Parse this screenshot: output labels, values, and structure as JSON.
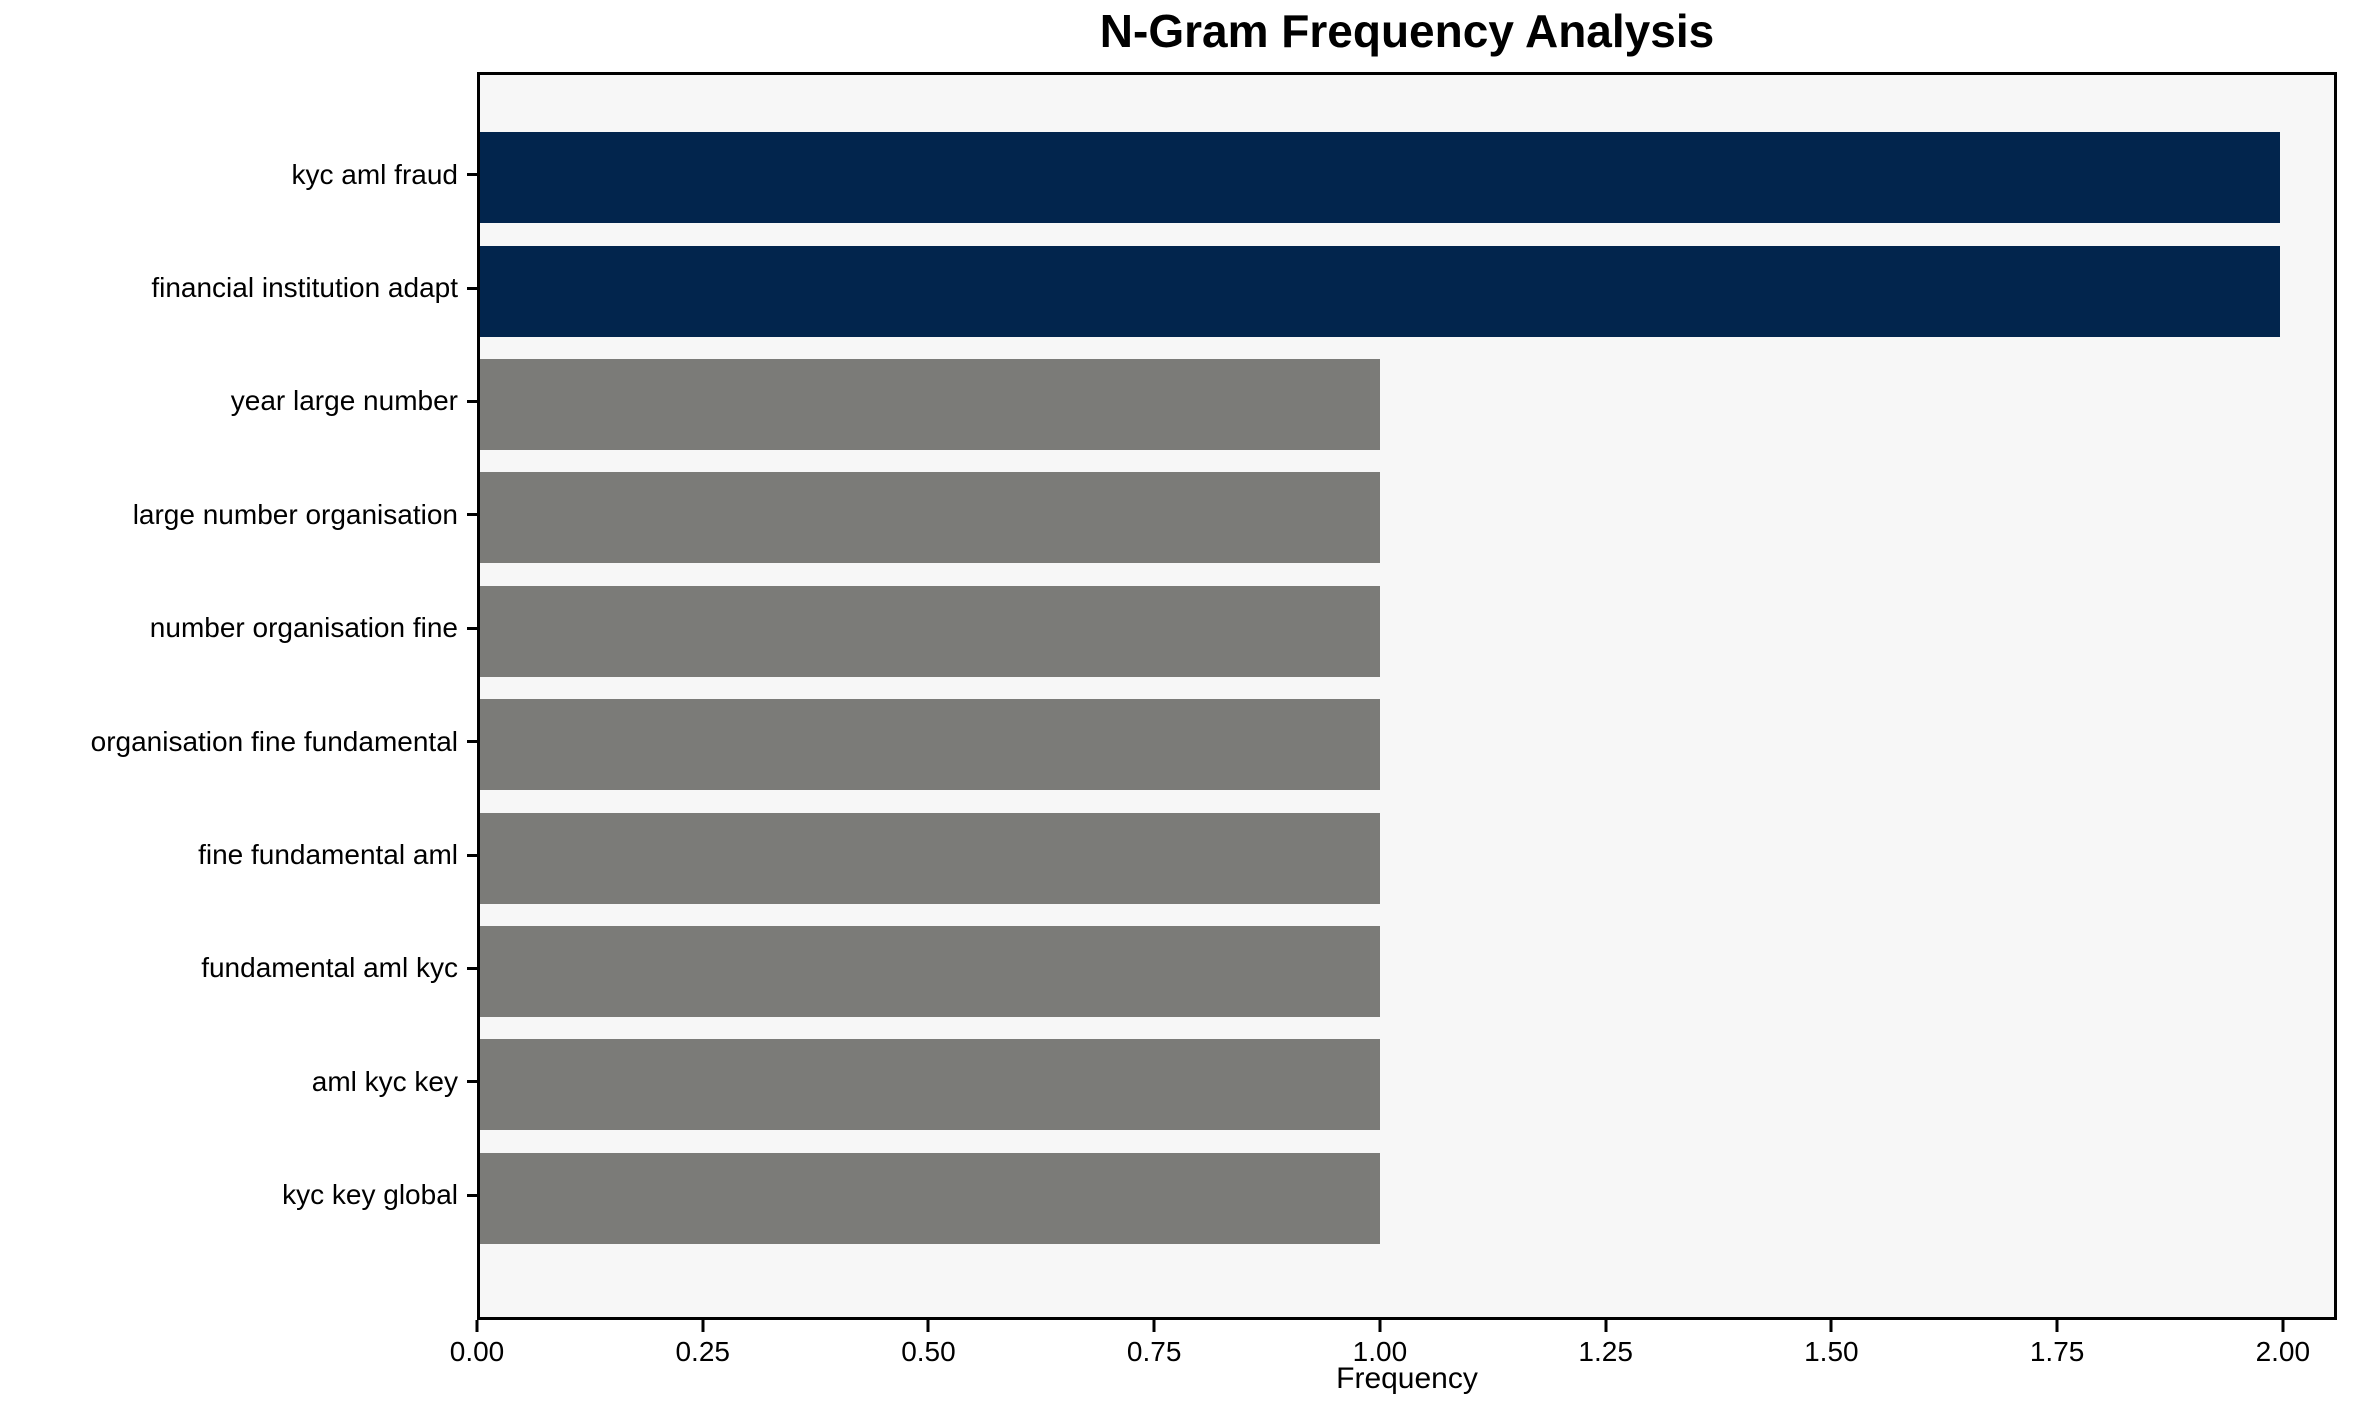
{
  "colors": {
    "bar_high": "#02254d",
    "bar_low": "#7b7b78",
    "plot_background": "#f7f7f7",
    "figure_background": "#ffffff",
    "axis": "#000000"
  },
  "chart_data": {
    "type": "bar",
    "orientation": "horizontal",
    "title": "N-Gram Frequency Analysis",
    "xlabel": "Frequency",
    "ylabel": "",
    "categories": [
      "kyc aml fraud",
      "financial institution adapt",
      "year large number",
      "large number organisation",
      "number organisation fine",
      "organisation fine fundamental",
      "fine fundamental aml",
      "fundamental aml kyc",
      "aml kyc key",
      "kyc key global"
    ],
    "values": [
      2,
      2,
      1,
      1,
      1,
      1,
      1,
      1,
      1,
      1
    ],
    "bar_colors": [
      "#02254d",
      "#02254d",
      "#7b7b78",
      "#7b7b78",
      "#7b7b78",
      "#7b7b78",
      "#7b7b78",
      "#7b7b78",
      "#7b7b78",
      "#7b7b78"
    ],
    "xlim": [
      0,
      2.06
    ],
    "xticks": {
      "values": [
        0,
        0.25,
        0.5,
        0.75,
        1.0,
        1.25,
        1.5,
        1.75,
        2.0
      ],
      "labels": [
        "0.00",
        "0.25",
        "0.50",
        "0.75",
        "1.00",
        "1.25",
        "1.50",
        "1.75",
        "2.00"
      ]
    },
    "grid": false,
    "legend": null,
    "plot_bg": "#f7f7f7"
  }
}
